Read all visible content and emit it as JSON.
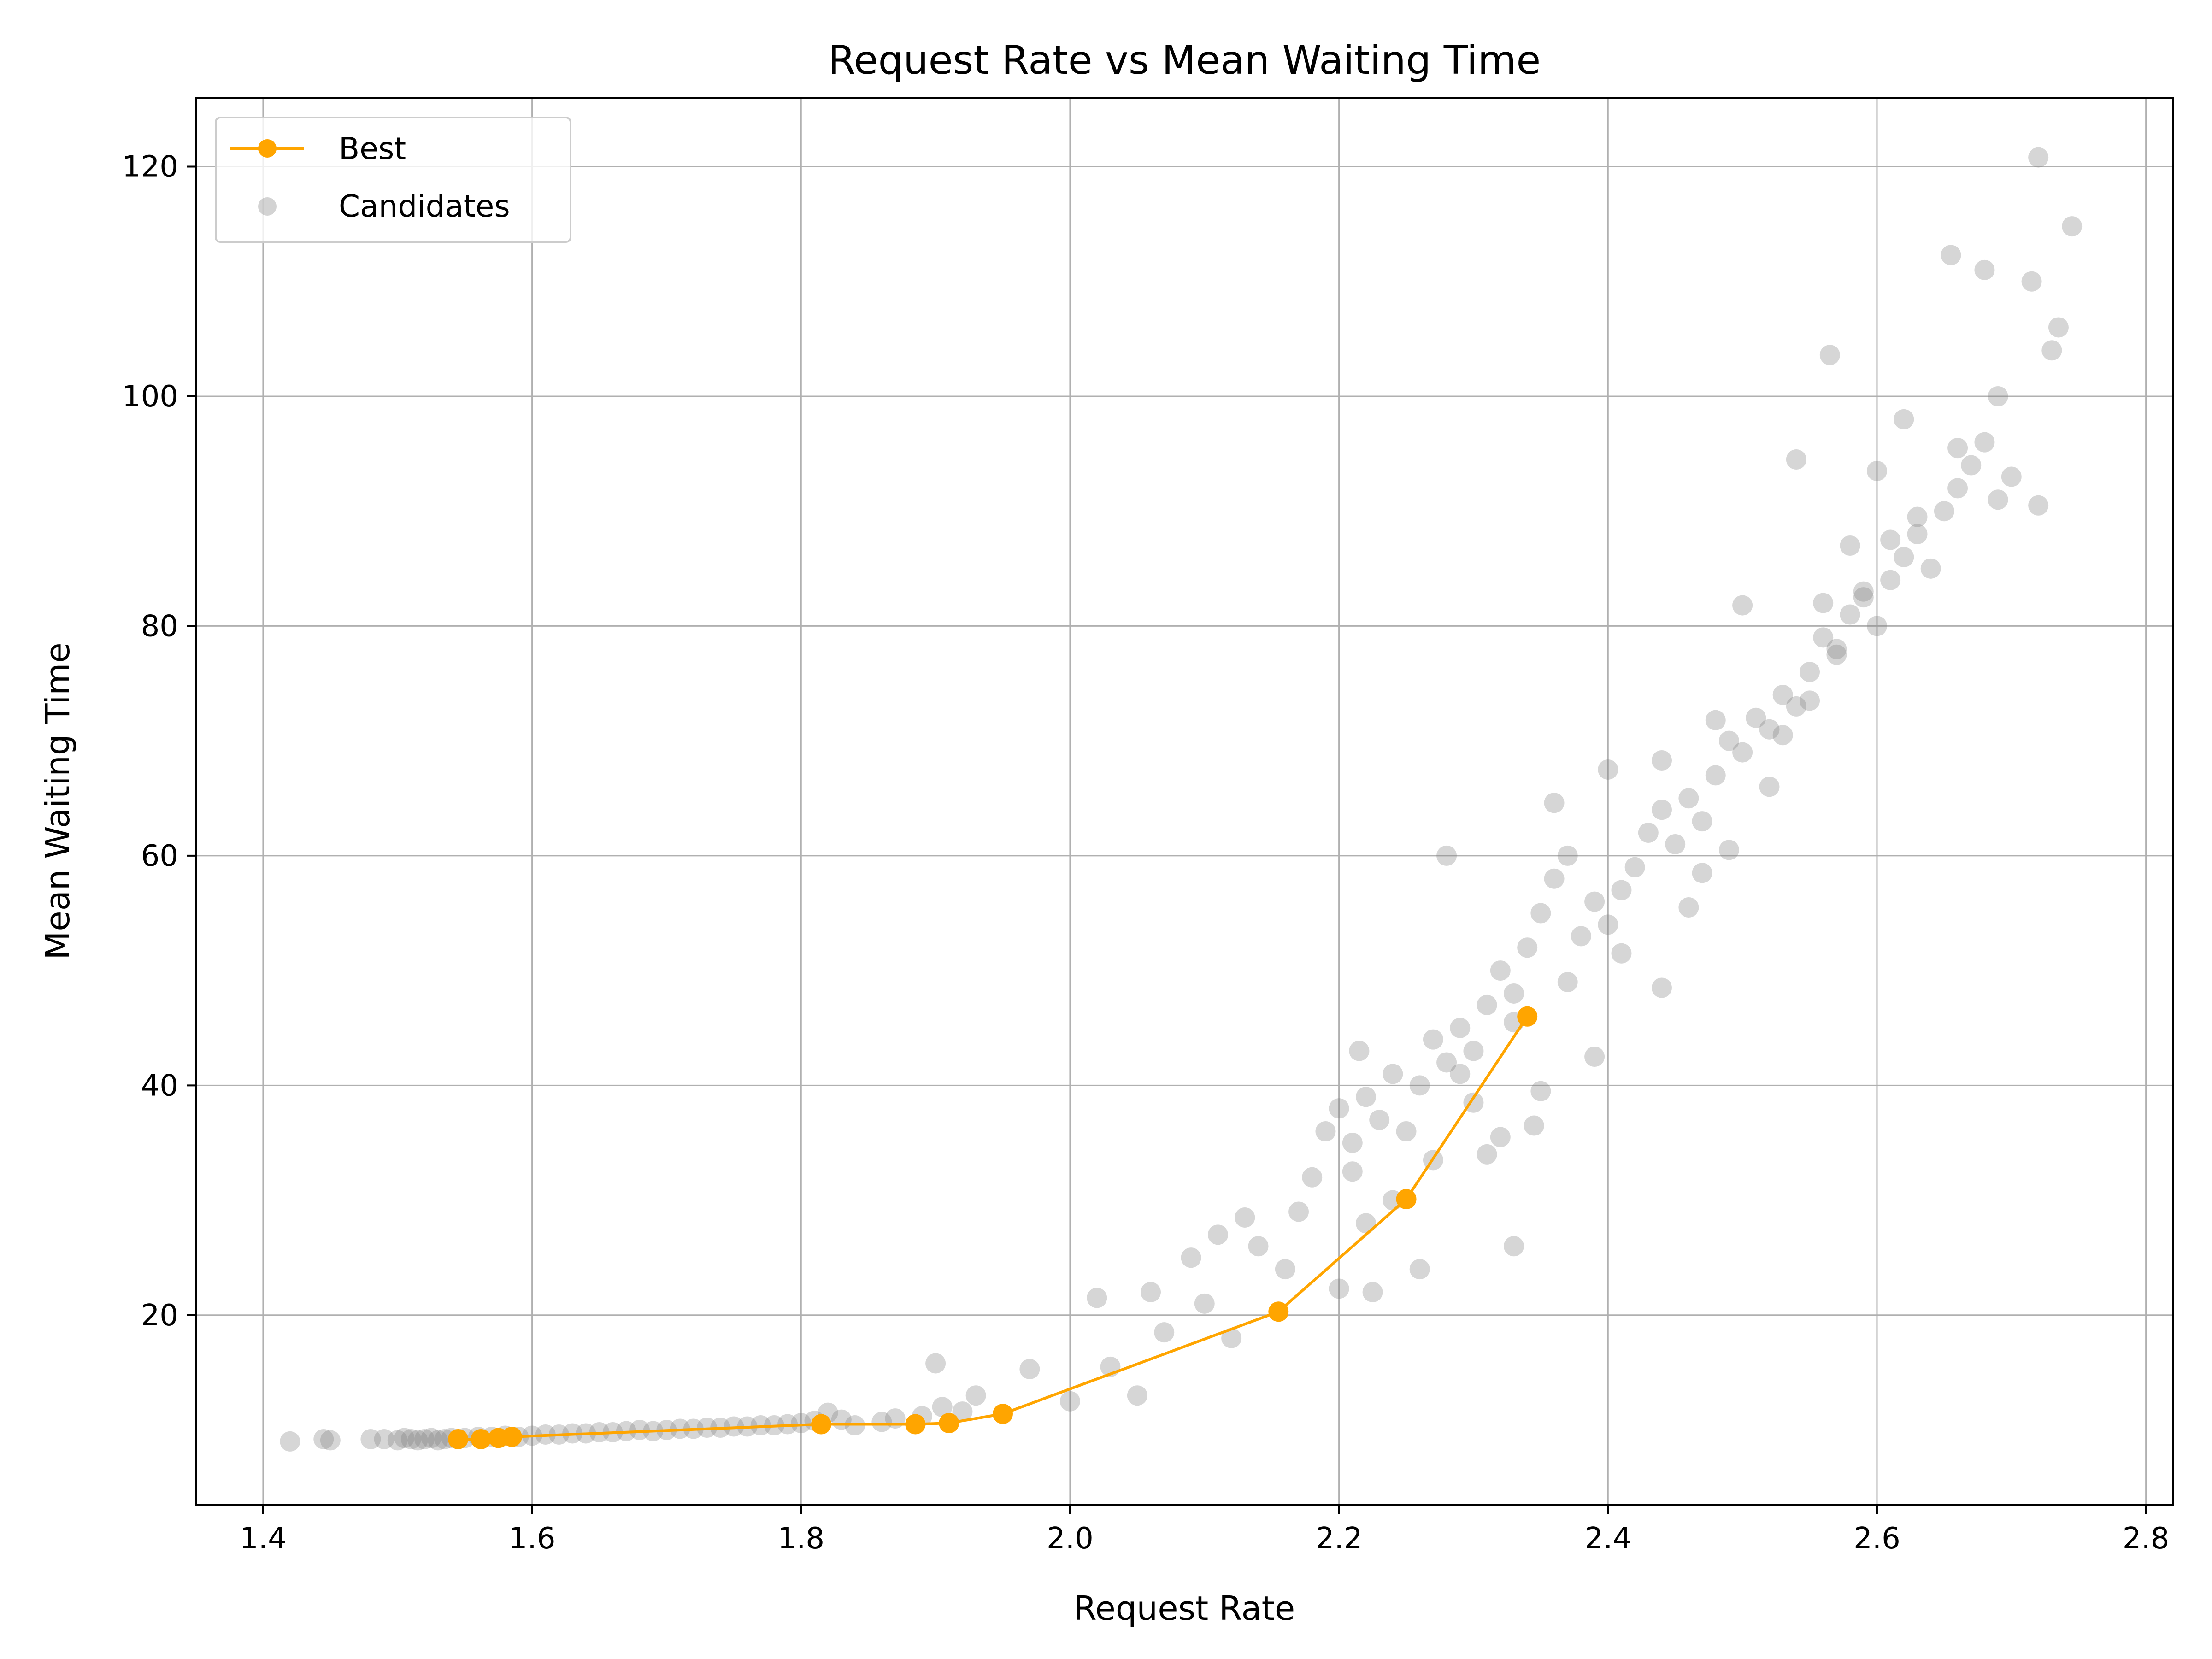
{
  "chart_data": {
    "type": "scatter",
    "title": "Request Rate vs Mean Waiting Time",
    "xlabel": "Request Rate",
    "ylabel": "Mean Waiting Time",
    "xlim": [
      1.35,
      2.82
    ],
    "ylim": [
      3.5,
      126
    ],
    "xticks": [
      1.4,
      1.6,
      1.8,
      2.0,
      2.2,
      2.4,
      2.6,
      2.8
    ],
    "yticks": [
      20,
      40,
      60,
      80,
      100,
      120
    ],
    "xtick_labels": [
      "1.4",
      "1.6",
      "1.8",
      "2.0",
      "2.2",
      "2.4",
      "2.6",
      "2.8"
    ],
    "ytick_labels": [
      "20",
      "40",
      "60",
      "80",
      "100",
      "120"
    ],
    "grid": true,
    "legend_position": "top-left",
    "colors": {
      "best": "#ffa500",
      "candidates": "#808080",
      "grid": "#b0b0b0"
    },
    "series": [
      {
        "name": "Best",
        "style": "line-marker",
        "x": [
          1.545,
          1.562,
          1.575,
          1.585,
          1.815,
          1.885,
          1.91,
          1.95,
          2.155,
          2.25,
          2.34
        ],
        "y": [
          9.2,
          9.2,
          9.3,
          9.4,
          10.5,
          10.5,
          10.6,
          11.4,
          20.3,
          30.1,
          46.0
        ]
      },
      {
        "name": "Candidates",
        "style": "scatter",
        "x": [
          1.42,
          1.445,
          1.45,
          1.48,
          1.49,
          1.5,
          1.505,
          1.51,
          1.515,
          1.52,
          1.525,
          1.53,
          1.535,
          1.54,
          1.55,
          1.56,
          1.57,
          1.58,
          1.59,
          1.6,
          1.61,
          1.62,
          1.63,
          1.64,
          1.65,
          1.66,
          1.67,
          1.68,
          1.69,
          1.7,
          1.71,
          1.72,
          1.73,
          1.74,
          1.75,
          1.76,
          1.77,
          1.78,
          1.79,
          1.8,
          1.81,
          1.82,
          1.83,
          1.84,
          1.86,
          1.87,
          1.89,
          1.9,
          1.905,
          1.92,
          1.93,
          1.97,
          2.0,
          2.02,
          2.03,
          2.05,
          2.06,
          2.07,
          2.09,
          2.1,
          2.11,
          2.12,
          2.13,
          2.14,
          2.16,
          2.17,
          2.18,
          2.19,
          2.2,
          2.21,
          2.22,
          2.23,
          2.24,
          2.25,
          2.26,
          2.27,
          2.28,
          2.29,
          2.3,
          2.31,
          2.32,
          2.33,
          2.34,
          2.35,
          2.36,
          2.37,
          2.38,
          2.39,
          2.4,
          2.41,
          2.42,
          2.43,
          2.44,
          2.45,
          2.46,
          2.47,
          2.48,
          2.49,
          2.5,
          2.51,
          2.52,
          2.53,
          2.54,
          2.55,
          2.56,
          2.57,
          2.58,
          2.59,
          2.6,
          2.61,
          2.62,
          2.63,
          2.64,
          2.65,
          2.66,
          2.67,
          2.68,
          2.69,
          2.7,
          2.72,
          2.73,
          2.745,
          2.72,
          2.655,
          2.68,
          2.565,
          2.28,
          2.36,
          2.4,
          2.44,
          2.54,
          2.5,
          2.48,
          2.26,
          2.225,
          2.24,
          2.33,
          2.32,
          2.215,
          2.31,
          2.345,
          2.2,
          2.21,
          2.22,
          2.27,
          2.29,
          2.3,
          2.33,
          2.35,
          2.37,
          2.39,
          2.41,
          2.44,
          2.46,
          2.47,
          2.49,
          2.52,
          2.53,
          2.55,
          2.57,
          2.59,
          2.61,
          2.63,
          2.66,
          2.69,
          2.715,
          2.735,
          2.62,
          2.6,
          2.58,
          2.56
        ],
        "y": [
          9.0,
          9.2,
          9.1,
          9.2,
          9.2,
          9.1,
          9.3,
          9.2,
          9.1,
          9.2,
          9.3,
          9.1,
          9.2,
          9.3,
          9.3,
          9.4,
          9.4,
          9.5,
          9.4,
          9.5,
          9.6,
          9.6,
          9.7,
          9.7,
          9.8,
          9.8,
          9.9,
          10.0,
          9.9,
          10.0,
          10.1,
          10.1,
          10.2,
          10.2,
          10.3,
          10.3,
          10.4,
          10.4,
          10.5,
          10.6,
          10.8,
          11.5,
          10.9,
          10.4,
          10.7,
          11.0,
          11.2,
          15.8,
          12.0,
          11.6,
          13.0,
          15.3,
          12.5,
          21.5,
          15.5,
          13.0,
          22.0,
          18.5,
          25.0,
          21.0,
          27.0,
          18.0,
          28.5,
          26.0,
          24.0,
          29.0,
          32.0,
          36.0,
          38.0,
          35.0,
          39.0,
          37.0,
          41.0,
          36.0,
          40.0,
          44.0,
          42.0,
          45.0,
          43.0,
          47.0,
          50.0,
          48.0,
          52.0,
          55.0,
          58.0,
          60.0,
          53.0,
          56.0,
          54.0,
          57.0,
          59.0,
          62.0,
          64.0,
          61.0,
          65.0,
          63.0,
          67.0,
          70.0,
          69.0,
          72.0,
          71.0,
          74.0,
          73.0,
          76.0,
          79.0,
          78.0,
          81.0,
          83.0,
          80.0,
          84.0,
          86.0,
          88.0,
          85.0,
          90.0,
          92.0,
          94.0,
          96.0,
          91.0,
          93.0,
          90.5,
          104.0,
          114.8,
          120.8,
          112.3,
          111.0,
          103.6,
          60.0,
          64.6,
          67.5,
          68.3,
          94.5,
          81.8,
          71.8,
          24.0,
          22.0,
          30.0,
          26.0,
          35.5,
          43.0,
          34.0,
          36.5,
          22.3,
          32.5,
          28.0,
          33.5,
          41.0,
          38.5,
          45.5,
          39.5,
          49.0,
          42.5,
          51.5,
          48.5,
          55.5,
          58.5,
          60.5,
          66.0,
          70.5,
          73.5,
          77.5,
          82.5,
          87.5,
          89.5,
          95.5,
          100.0,
          110.0,
          106.0,
          98.0,
          93.5,
          87.0,
          82.0
        ]
      }
    ]
  }
}
